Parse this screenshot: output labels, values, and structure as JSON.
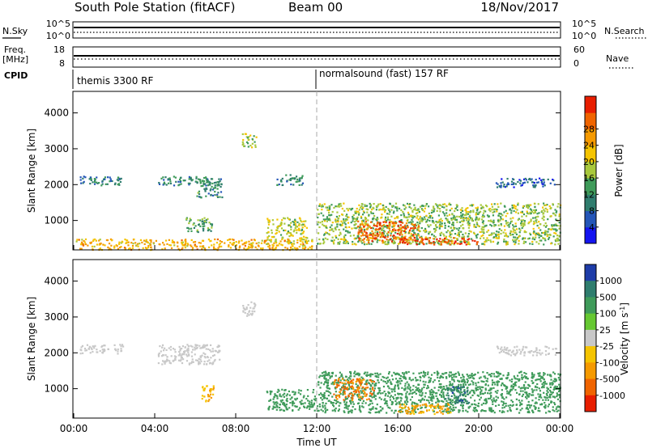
{
  "header": {
    "station": "South Pole Station (fitACF)",
    "beam": "Beam 00",
    "date": "18/Nov/2017"
  },
  "top_panels": {
    "nsky_label": "N.Sky",
    "nsearch_label": "N.Search",
    "nsky_ticks": [
      "10^5",
      "10^0"
    ],
    "nsearch_ticks": [
      "10^5",
      "10^0"
    ],
    "freq_label_1": "Freq.",
    "freq_label_2": "[MHz]",
    "freq_ticks": [
      "18",
      "8"
    ],
    "nave_label": "Nave",
    "nave_ticks": [
      "60",
      "0"
    ],
    "cpid_label": "CPID",
    "cpid_segments": [
      "themis 3300 RF",
      "normalsound (fast) 157 RF"
    ]
  },
  "chart_data": [
    {
      "type": "heatmap",
      "title": "",
      "xlabel": "Time UT",
      "ylabel": "Slant Range [km]",
      "x_ticks": [
        "00:00",
        "04:00",
        "08:00",
        "12:00",
        "16:00",
        "20:00",
        "00:00"
      ],
      "xlim_hours": [
        0,
        24
      ],
      "y_ticks": [
        1000,
        2000,
        3000,
        4000
      ],
      "ylim": [
        180,
        4600
      ],
      "colorbar": {
        "label": "Power [dB]",
        "ticks": [
          "4",
          "8",
          "12",
          "16",
          "20",
          "24",
          "28"
        ],
        "range": [
          0,
          30
        ],
        "colors": [
          "#1414f0",
          "#2456b8",
          "#2f7d6e",
          "#3f9b5a",
          "#a8c83c",
          "#f5c400",
          "#f59a00",
          "#f06400",
          "#e81e00"
        ]
      },
      "regions": [
        {
          "t": [
            0.3,
            2.4
          ],
          "r": [
            2000,
            2250
          ],
          "v": 8
        },
        {
          "t": [
            4.1,
            6.7
          ],
          "r": [
            2000,
            2250
          ],
          "v": 9
        },
        {
          "t": [
            6.0,
            7.3
          ],
          "r": [
            1650,
            2200
          ],
          "v": 10
        },
        {
          "t": [
            5.5,
            6.8
          ],
          "r": [
            700,
            1100
          ],
          "v": 12
        },
        {
          "t": [
            8.3,
            9.0
          ],
          "r": [
            3050,
            3450
          ],
          "v": 14
        },
        {
          "t": [
            10.0,
            11.3
          ],
          "r": [
            2000,
            2300
          ],
          "v": 10
        },
        {
          "t": [
            9.5,
            11.5
          ],
          "r": [
            400,
            1100
          ],
          "v": 16
        },
        {
          "t": [
            12.0,
            24.0
          ],
          "r": [
            350,
            1500
          ],
          "v": 14
        },
        {
          "t": [
            14.0,
            17.0
          ],
          "r": [
            400,
            1000
          ],
          "v": 25
        },
        {
          "t": [
            16.0,
            20.0
          ],
          "r": [
            350,
            550
          ],
          "v": 27
        },
        {
          "t": [
            20.8,
            23.8
          ],
          "r": [
            1950,
            2200
          ],
          "v": 6
        },
        {
          "t": [
            0.1,
            11.8
          ],
          "r": [
            200,
            500
          ],
          "v": 20
        }
      ]
    },
    {
      "type": "heatmap",
      "title": "",
      "xlabel": "Time UT",
      "ylabel": "Slant Range [km]",
      "x_ticks": [
        "00:00",
        "04:00",
        "08:00",
        "12:00",
        "16:00",
        "20:00",
        "00:00"
      ],
      "xlim_hours": [
        0,
        24
      ],
      "y_ticks": [
        1000,
        2000,
        3000,
        4000
      ],
      "ylim": [
        180,
        4600
      ],
      "colorbar": {
        "label": "Velocity [m s^-1]",
        "ticks": [
          "1000",
          "500",
          "100",
          "25",
          "-25",
          "-100",
          "-500",
          "-1000"
        ],
        "colors": [
          "#1e3ca8",
          "#2f7d6e",
          "#3f9b5a",
          "#66c832",
          "#c8c8c8",
          "#f5c400",
          "#f59a00",
          "#f06400",
          "#e81e00"
        ]
      },
      "regions": [
        {
          "t": [
            0.3,
            2.4
          ],
          "r": [
            2000,
            2250
          ],
          "v": 0
        },
        {
          "t": [
            4.1,
            7.2
          ],
          "r": [
            1700,
            2250
          ],
          "v": 0
        },
        {
          "t": [
            8.3,
            9.0
          ],
          "r": [
            3050,
            3450
          ],
          "v": 0
        },
        {
          "t": [
            6.2,
            6.9
          ],
          "r": [
            650,
            1100
          ],
          "v": -100
        },
        {
          "t": [
            9.5,
            12.0
          ],
          "r": [
            400,
            1000
          ],
          "v": 300
        },
        {
          "t": [
            12.0,
            24.0
          ],
          "r": [
            350,
            1500
          ],
          "v": 300
        },
        {
          "t": [
            12.8,
            14.8
          ],
          "r": [
            700,
            1300
          ],
          "v": -500
        },
        {
          "t": [
            16.0,
            18.6
          ],
          "r": [
            300,
            600
          ],
          "v": -120
        },
        {
          "t": [
            18.3,
            19.5
          ],
          "r": [
            600,
            1100
          ],
          "v": 800
        },
        {
          "t": [
            20.8,
            23.8
          ],
          "r": [
            1950,
            2200
          ],
          "v": 0
        }
      ]
    }
  ]
}
